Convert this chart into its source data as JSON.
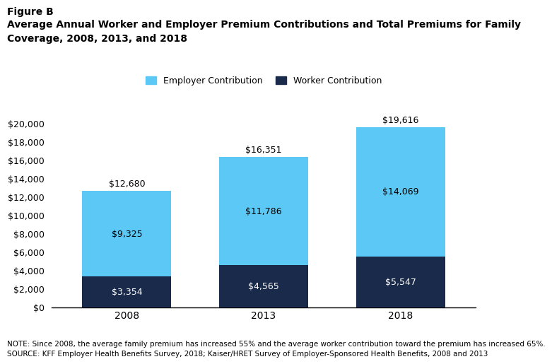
{
  "years": [
    "2008",
    "2013",
    "2018"
  ],
  "worker_contributions": [
    3354,
    4565,
    5547
  ],
  "employer_contributions": [
    9325,
    11786,
    14069
  ],
  "totals": [
    12680,
    16351,
    19616
  ],
  "employer_color": "#5bc8f5",
  "worker_color": "#1a2a4a",
  "title_line1": "Figure B",
  "title_line2": "Average Annual Worker and Employer Premium Contributions and Total Premiums for Family",
  "title_line3": "Coverage, 2008, 2013, and 2018",
  "legend_employer": "Employer Contribution",
  "legend_worker": "Worker Contribution",
  "ylim": [
    0,
    21000
  ],
  "yticks": [
    0,
    2000,
    4000,
    6000,
    8000,
    10000,
    12000,
    14000,
    16000,
    18000,
    20000
  ],
  "note_line1": "NOTE: Since 2008, the average family premium has increased 55% and the average worker contribution toward the premium has increased 65%.",
  "note_line2": "SOURCE: KFF Employer Health Benefits Survey, 2018; Kaiser/HRET Survey of Employer-Sponsored Health Benefits, 2008 and 2013",
  "bar_width": 0.65
}
